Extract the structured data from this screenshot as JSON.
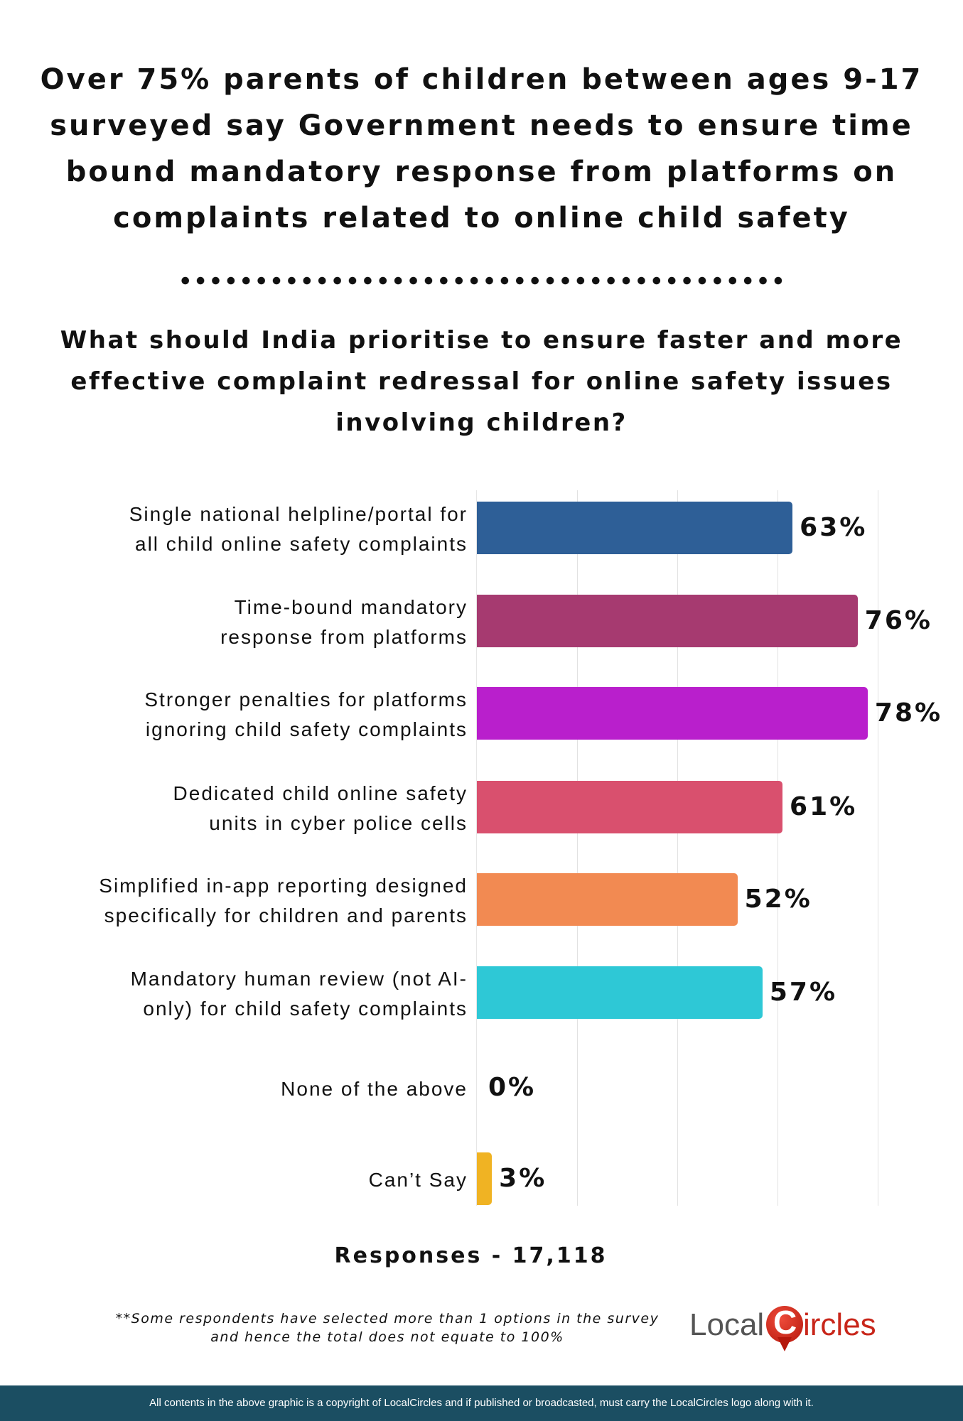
{
  "title": [
    "Over 75% parents of children between ages 9-17",
    "surveyed say Government needs to ensure time",
    "bound mandatory response from platforms on",
    "complaints related to online child safety"
  ],
  "subtitle": [
    "What should India prioritise to ensure faster and more",
    "effective complaint redressal for online safety issues",
    "involving children?"
  ],
  "chart_data": {
    "type": "bar",
    "orientation": "horizontal",
    "title": "What should India prioritise to ensure faster and more effective complaint redressal for online safety issues involving children?",
    "categories": [
      [
        "Single national helpline/portal for",
        "all child online safety complaints"
      ],
      [
        "Time-bound mandatory",
        "response from platforms"
      ],
      [
        "Stronger penalties for platforms",
        "ignoring child safety complaints"
      ],
      [
        "Dedicated child online safety",
        "units in cyber police cells"
      ],
      [
        "Simplified in-app reporting designed",
        "specifically for children and parents"
      ],
      [
        "Mandatory human review (not AI-",
        "only) for child safety complaints"
      ],
      [
        "None of the above"
      ],
      [
        "Can’t Say"
      ]
    ],
    "values": [
      63,
      76,
      78,
      61,
      52,
      57,
      0,
      3
    ],
    "value_labels": [
      "63%",
      "76%",
      "78%",
      "61%",
      "52%",
      "57%",
      "0%",
      "3%"
    ],
    "colors": [
      "#2e5f97",
      "#a63a70",
      "#b91fcc",
      "#d9506e",
      "#f28a52",
      "#2ec8d6",
      "#cccccc",
      "#f0b323"
    ],
    "xlim": [
      0,
      80
    ],
    "grid": true,
    "xlabel": "",
    "ylabel": ""
  },
  "responses": "Responses - 17,118",
  "footnote": [
    "**Some respondents have selected more than 1 options in the survey",
    "and hence the total does not equate to 100%"
  ],
  "logo": {
    "left": "Local",
    "c": "C",
    "right": "ircles"
  },
  "footer": "All contents in the above graphic is a copyright of LocalCircles and if published or broadcasted, must carry the LocalCircles logo along with it."
}
